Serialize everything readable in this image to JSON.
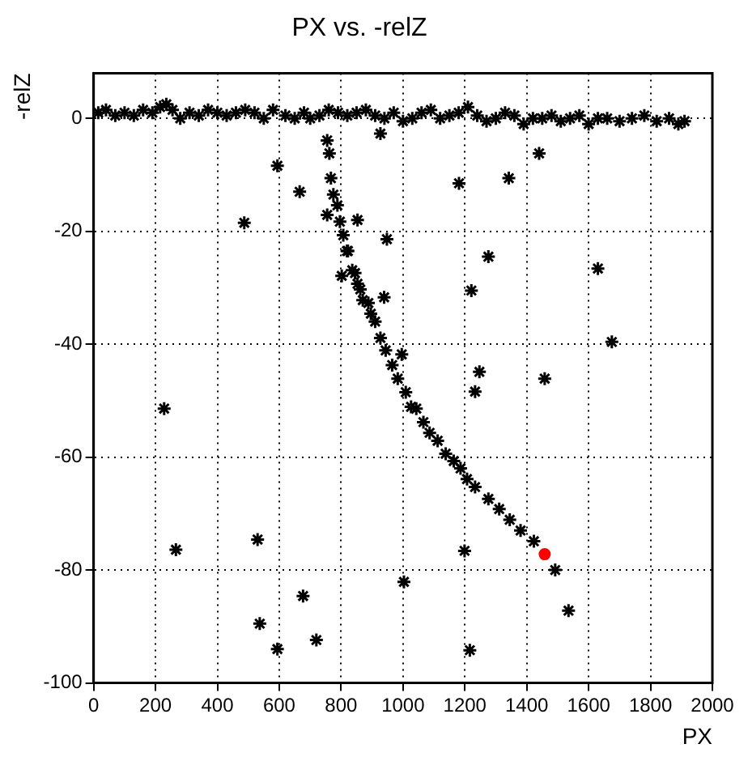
{
  "chart_data": {
    "type": "scatter",
    "title": "PX vs. -relZ",
    "xlabel": "PX",
    "ylabel": "-relZ",
    "xlim": [
      0,
      2000
    ],
    "xticks": [
      0,
      200,
      400,
      600,
      800,
      1000,
      1200,
      1400,
      1600,
      1800,
      2000
    ],
    "ylim": [
      -100,
      8
    ],
    "yticks": [
      -100,
      -80,
      -60,
      -40,
      -20,
      0
    ],
    "grid": true,
    "legend": false,
    "series": [
      {
        "color": "#000000",
        "marker": "cross",
        "x": [
          15,
          40,
          70,
          100,
          130,
          160,
          190,
          215,
          235,
          255,
          280,
          310,
          340,
          370,
          400,
          430,
          460,
          490,
          520,
          550,
          580,
          620,
          650,
          680,
          700,
          730,
          760,
          790,
          820,
          850,
          880,
          910,
          940,
          970,
          1000,
          1030,
          1060,
          1090,
          1120,
          1150,
          1180,
          1210,
          1240,
          1270,
          1300,
          1330,
          1360,
          1390,
          1420,
          1450,
          1480,
          1510,
          1540,
          1570,
          1600,
          1630,
          1660,
          1700,
          1740,
          1780,
          1820,
          1860,
          1890,
          1910,
          228,
          266,
          487,
          530,
          537,
          594,
          594,
          666,
          677,
          720,
          755,
          762,
          767,
          775,
          788,
          755,
          796,
          807,
          822,
          853,
          927,
          948,
          1181,
          1342,
          1440,
          802,
          819,
          836,
          845,
          853,
          862,
          870,
          888,
          896,
          910,
          927,
          939,
          944,
          965,
          983,
          996,
          1009,
          1026,
          1043,
          1066,
          1086,
          1112,
          1138,
          1164,
          1186,
          1207,
          1233,
          1276,
          1311,
          1345,
          1380,
          1423,
          1003,
          1216,
          1199,
          1221,
          1247,
          1233,
          1276,
          1458,
          1630,
          1675,
          1492,
          1535
        ],
        "values": [
          1,
          1.5,
          0.5,
          1,
          0.5,
          1.5,
          1,
          2,
          2.5,
          1.5,
          0,
          1,
          0.5,
          1.5,
          1,
          0.5,
          1,
          1.5,
          1,
          0,
          1.5,
          0.5,
          0,
          1,
          0,
          0.5,
          1.5,
          1,
          0.5,
          1,
          1.5,
          0.5,
          0,
          1,
          -0.5,
          0,
          1,
          1.5,
          0,
          0.5,
          1,
          2,
          0.5,
          -0.5,
          0,
          1,
          0.5,
          -1,
          0,
          0,
          0.5,
          -0.5,
          0,
          0.5,
          -1,
          0,
          0,
          -0.5,
          0,
          0.5,
          -0.5,
          0,
          -1,
          -0.5,
          -51.4,
          -76.4,
          -18.5,
          -74.6,
          -89.5,
          -8.4,
          -94,
          -13,
          -84.6,
          -92.4,
          -3.9,
          -6.2,
          -10.6,
          -13.5,
          -15.4,
          -17.1,
          -18.3,
          -20.7,
          -23.5,
          -18,
          -2.7,
          -21.4,
          -11.5,
          -10.6,
          -6.2,
          -27.9,
          -23.5,
          -26.9,
          -27.4,
          -29.3,
          -30.3,
          -32.2,
          -32.7,
          -34.6,
          -36,
          -38.9,
          -31.7,
          -41.1,
          -43.7,
          -46.1,
          -41.8,
          -48.5,
          -51.1,
          -51.4,
          -53.8,
          -55.7,
          -57.1,
          -59.4,
          -60.7,
          -62,
          -63.9,
          -65.3,
          -67.4,
          -69.2,
          -71.1,
          -73,
          -74.9,
          -82.1,
          -94.2,
          -76.6,
          -30.5,
          -44.9,
          -48.4,
          -24.5,
          -46.1,
          -26.6,
          -39.6,
          -80,
          -87.2
        ]
      },
      {
        "color": "#ff0000",
        "marker": "circle",
        "x": [
          1458
        ],
        "values": [
          -77.2
        ]
      }
    ]
  }
}
